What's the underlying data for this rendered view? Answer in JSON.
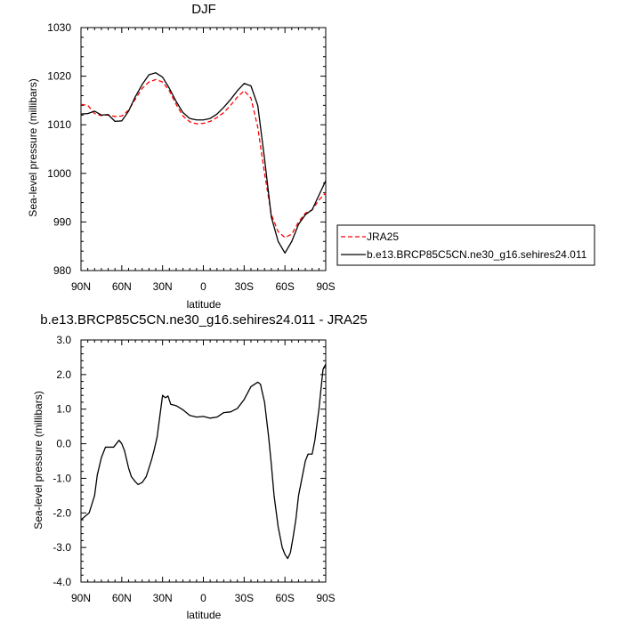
{
  "chart_data": [
    {
      "type": "line",
      "title": "DJF",
      "xlabel": "latitude",
      "ylabel": "Sea-level pressure (millibars)",
      "xlim": [
        0,
        180
      ],
      "ylim": [
        980,
        1030
      ],
      "x_ticks": [
        {
          "x": 0,
          "label": "90N"
        },
        {
          "x": 30,
          "label": "60N"
        },
        {
          "x": 60,
          "label": "30N"
        },
        {
          "x": 90,
          "label": "0"
        },
        {
          "x": 120,
          "label": "30S"
        },
        {
          "x": 150,
          "label": "60S"
        },
        {
          "x": 180,
          "label": "90S"
        }
      ],
      "y_ticks": [
        {
          "y": 980,
          "label": "980"
        },
        {
          "y": 990,
          "label": "990"
        },
        {
          "y": 1000,
          "label": "1000"
        },
        {
          "y": 1010,
          "label": "1010"
        },
        {
          "y": 1020,
          "label": "1020"
        },
        {
          "y": 1030,
          "label": "1030"
        }
      ],
      "legend_position": "right, outside plot",
      "series": [
        {
          "name": "JRA25",
          "color": "#ff0000",
          "dash": "dashed",
          "x": [
            0,
            5,
            10,
            15,
            20,
            25,
            30,
            35,
            40,
            45,
            50,
            55,
            60,
            65,
            70,
            75,
            80,
            85,
            90,
            95,
            100,
            105,
            110,
            115,
            120,
            125,
            130,
            135,
            140,
            145,
            150,
            155,
            160,
            165,
            170,
            175,
            180
          ],
          "y": [
            1014.2,
            1014.0,
            1012.3,
            1011.9,
            1012.0,
            1011.7,
            1011.8,
            1013.0,
            1015.3,
            1017.5,
            1018.8,
            1019.3,
            1018.8,
            1017.0,
            1014.2,
            1011.8,
            1010.6,
            1010.2,
            1010.3,
            1010.7,
            1011.5,
            1012.5,
            1014.0,
            1015.7,
            1017.0,
            1015.5,
            1009.5,
            1000.0,
            991.5,
            988.0,
            986.8,
            987.5,
            990.0,
            991.8,
            992.5,
            994.5,
            996.0
          ]
        },
        {
          "name": "b.e13.BRCP85C5CN.ne30_g16.sehires24.011",
          "color": "#000000",
          "dash": "solid",
          "x": [
            0,
            5,
            10,
            15,
            20,
            25,
            30,
            35,
            40,
            45,
            50,
            55,
            60,
            65,
            70,
            75,
            80,
            85,
            90,
            95,
            100,
            105,
            110,
            115,
            120,
            125,
            130,
            135,
            140,
            145,
            150,
            155,
            160,
            165,
            170,
            175,
            180
          ],
          "y": [
            1012.2,
            1012.3,
            1012.8,
            1012.0,
            1012.1,
            1010.7,
            1010.8,
            1012.8,
            1015.8,
            1018.3,
            1020.3,
            1020.7,
            1019.8,
            1017.5,
            1014.8,
            1012.5,
            1011.3,
            1011.0,
            1011.0,
            1011.3,
            1012.2,
            1013.6,
            1015.2,
            1017.0,
            1018.5,
            1018.0,
            1014.0,
            1003.0,
            991.0,
            986.0,
            983.6,
            986.0,
            989.5,
            991.5,
            992.5,
            995.5,
            998.5
          ]
        }
      ]
    },
    {
      "type": "line",
      "title": "b.e13.BRCP85C5CN.ne30_g16.sehires24.011 - JRA25",
      "xlabel": "latitude",
      "ylabel": "Sea-level pressure (millibars)",
      "xlim": [
        0,
        180
      ],
      "ylim": [
        -4.0,
        3.0
      ],
      "x_ticks": [
        {
          "x": 0,
          "label": "90N"
        },
        {
          "x": 30,
          "label": "60N"
        },
        {
          "x": 60,
          "label": "30N"
        },
        {
          "x": 90,
          "label": "0"
        },
        {
          "x": 120,
          "label": "30S"
        },
        {
          "x": 150,
          "label": "60S"
        },
        {
          "x": 180,
          "label": "90S"
        }
      ],
      "y_ticks": [
        {
          "y": -4.0,
          "label": "-4.0"
        },
        {
          "y": -3.0,
          "label": "-3.0"
        },
        {
          "y": -2.0,
          "label": "-2.0"
        },
        {
          "y": -1.0,
          "label": "-1.0"
        },
        {
          "y": 0.0,
          "label": "0.0"
        },
        {
          "y": 1.0,
          "label": "1.0"
        },
        {
          "y": 2.0,
          "label": "2.0"
        },
        {
          "y": 3.0,
          "label": "3.0"
        }
      ],
      "series": [
        {
          "color": "#000000",
          "dash": "solid",
          "x": [
            0,
            6,
            10,
            12,
            15,
            18,
            20,
            22,
            24,
            26,
            28,
            30,
            32,
            35,
            37,
            40,
            42,
            45,
            48,
            50,
            52,
            54,
            56,
            58,
            60,
            62,
            64,
            66,
            70,
            75,
            80,
            85,
            90,
            95,
            100,
            105,
            110,
            115,
            120,
            125,
            130,
            132,
            135,
            138,
            140,
            142,
            145,
            148,
            150,
            152,
            154,
            156,
            158,
            160,
            163,
            165,
            167,
            170,
            172,
            175,
            178,
            180
          ],
          "y": [
            -2.2,
            -2.0,
            -1.5,
            -0.9,
            -0.4,
            -0.1,
            -0.1,
            -0.1,
            -0.1,
            0.0,
            0.1,
            0.0,
            -0.2,
            -0.7,
            -0.95,
            -1.1,
            -1.18,
            -1.12,
            -0.95,
            -0.7,
            -0.45,
            -0.15,
            0.2,
            0.8,
            1.4,
            1.33,
            1.38,
            1.14,
            1.1,
            0.98,
            0.82,
            0.77,
            0.79,
            0.74,
            0.77,
            0.9,
            0.92,
            1.02,
            1.28,
            1.65,
            1.78,
            1.72,
            1.2,
            0.2,
            -0.6,
            -1.5,
            -2.4,
            -3.0,
            -3.2,
            -3.32,
            -3.15,
            -2.7,
            -2.2,
            -1.5,
            -0.9,
            -0.5,
            -0.3,
            -0.3,
            0.1,
            1.0,
            2.15,
            2.3
          ]
        }
      ]
    }
  ]
}
